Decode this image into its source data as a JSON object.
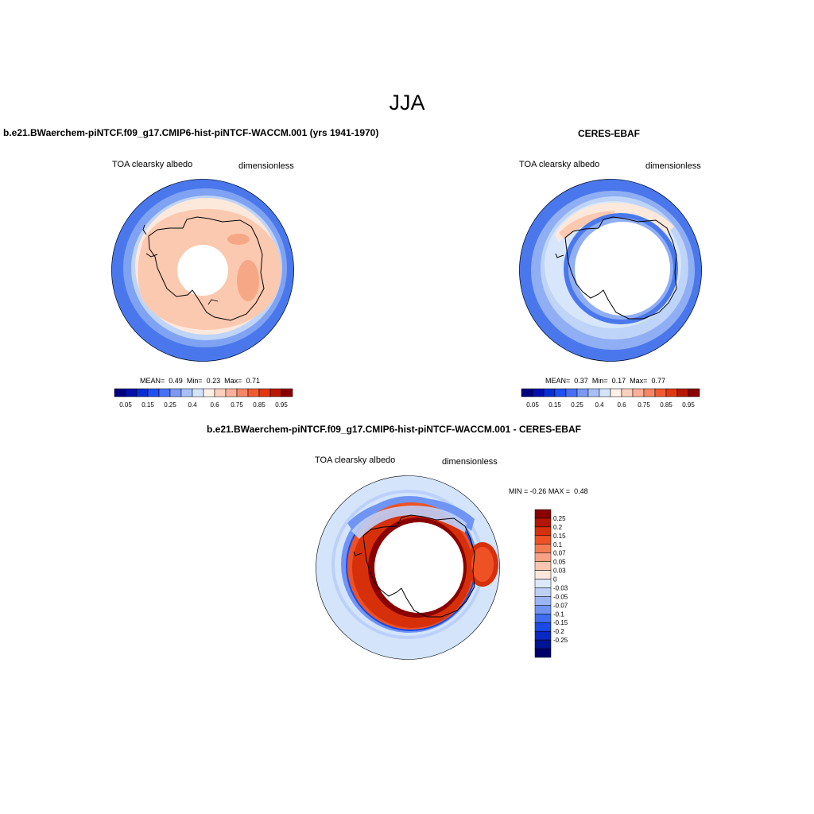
{
  "title": "JJA",
  "panels": {
    "model": {
      "title": "b.e21.BWaerchem-piNTCF.f09_g17.CMIP6-hist-piNTCF-WACCM.001 (yrs 1941-1970)",
      "left_label": "TOA clearsky albedo",
      "right_label": "dimensionless",
      "stats": {
        "mean_label": "MEAN=",
        "mean": "0.49",
        "min_label": "Min=",
        "min": "0.23",
        "max_label": "Max=",
        "max": "0.71"
      }
    },
    "obs": {
      "title": "CERES-EBAF",
      "left_label": "TOA clearsky albedo",
      "right_label": "dimensionless",
      "stats": {
        "mean_label": "MEAN=",
        "mean": "0.37",
        "min_label": "Min=",
        "min": "0.17",
        "max_label": "Max=",
        "max": "0.77"
      }
    },
    "diff": {
      "title": "b.e21.BWaerchem-piNTCF.f09_g17.CMIP6-hist-piNTCF-WACCM.001 - CERES-EBAF",
      "left_label": "TOA clearsky albedo",
      "right_label": "dimensionless",
      "stats": {
        "min_label": "MIN =",
        "min": "-0.26",
        "max_label": "MAX =",
        "max": "0.48"
      }
    }
  },
  "colorbars": {
    "abs": {
      "colors": [
        "#00007f",
        "#0010a8",
        "#0a2fd0",
        "#2150f0",
        "#4870f4",
        "#7b98f5",
        "#a8c0f7",
        "#d4e4fb",
        "#fff0e8",
        "#fcd0bc",
        "#fab09a",
        "#f58766",
        "#ef5a33",
        "#e03810",
        "#b81800",
        "#8a0000"
      ],
      "tick_labels": [
        "0.05",
        "0.15",
        "0.25",
        "0.4",
        "0.6",
        "0.75",
        "0.85",
        "0.95"
      ]
    },
    "diff": {
      "colors": [
        "#8a0000",
        "#b31500",
        "#d6300a",
        "#ee5224",
        "#f47c53",
        "#f8a285",
        "#fbc6b0",
        "#fde6da",
        "#dce9fb",
        "#bcd0fa",
        "#9bb6f8",
        "#6f94f4",
        "#3f6cf0",
        "#1c4ae6",
        "#0a28c4",
        "#001494",
        "#00006c"
      ],
      "tick_labels": [
        "0.25",
        "0.2",
        "0.15",
        "0.1",
        "0.07",
        "0.05",
        "0.03",
        "0",
        "-0.03",
        "-0.05",
        "-0.07",
        "-0.1",
        "-0.15",
        "-0.2",
        "-0.25"
      ]
    }
  }
}
